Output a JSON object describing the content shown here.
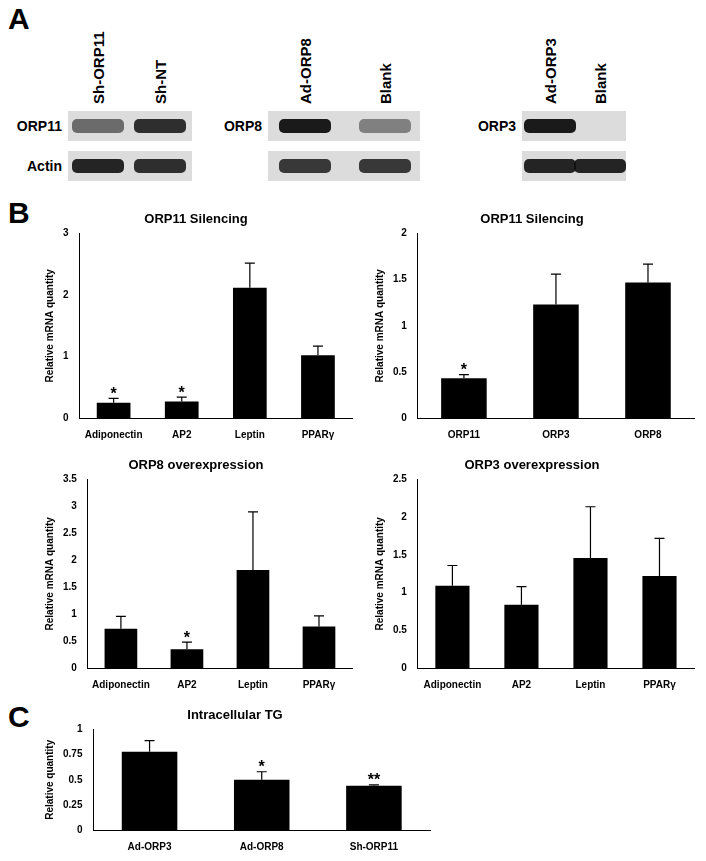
{
  "panel_labels": [
    "A",
    "B",
    "C"
  ],
  "blots": [
    {
      "lanes": [
        "Sh-ORP11",
        "Sh-NT"
      ],
      "rows": [
        {
          "label": "ORP11",
          "bands": [
            0.55,
            0.85
          ]
        },
        {
          "label": "Actin",
          "bands": [
            0.9,
            0.85
          ]
        }
      ]
    },
    {
      "lanes": [
        "Ad-ORP8",
        "Blank"
      ],
      "rows": [
        {
          "label": "ORP8",
          "bands": [
            0.95,
            0.45
          ]
        },
        {
          "label": null,
          "bands": [
            0.8,
            0.8
          ]
        }
      ]
    },
    {
      "lanes": [
        "Ad-ORP3",
        "Blank"
      ],
      "rows": [
        {
          "label": "ORP3",
          "bands": [
            0.95,
            0.0
          ]
        },
        {
          "label": null,
          "bands": [
            0.9,
            0.9
          ]
        }
      ]
    }
  ],
  "chart_data": [
    {
      "type": "bar",
      "title": "ORP11 Silencing",
      "y_label": "Relative mRNA quantity",
      "categories": [
        "Adiponectin",
        "AP2",
        "Leptin",
        "PPARγ"
      ],
      "values": [
        0.25,
        0.27,
        2.12,
        1.02
      ],
      "errors": [
        0.07,
        0.07,
        0.4,
        0.15
      ],
      "annotations": [
        "*",
        "*",
        null,
        null
      ],
      "color": "#000000",
      "ylim": [
        0,
        3
      ],
      "yticks": [
        0,
        1,
        2,
        3
      ],
      "grid": false
    },
    {
      "type": "bar",
      "title": "ORP11 Silencing",
      "y_label": "Relative mRNA quantity",
      "categories": [
        "ORP11",
        "ORP3",
        "ORP8"
      ],
      "values": [
        0.43,
        1.23,
        1.47
      ],
      "errors": [
        0.04,
        0.33,
        0.2
      ],
      "annotations": [
        "*",
        null,
        null
      ],
      "color": "#000000",
      "ylim": [
        0,
        2
      ],
      "yticks": [
        0,
        0.5,
        1,
        1.5,
        2
      ],
      "grid": false
    },
    {
      "type": "bar",
      "title": "ORP8 overexpression",
      "y_label": "Relative mRNA quantity",
      "categories": [
        "Adiponectin",
        "AP2",
        "Leptin",
        "PPARγ"
      ],
      "values": [
        0.73,
        0.35,
        1.82,
        0.77
      ],
      "errors": [
        0.23,
        0.13,
        1.08,
        0.2
      ],
      "annotations": [
        null,
        "*",
        null,
        null
      ],
      "color": "#000000",
      "ylim": [
        0,
        3.5
      ],
      "yticks": [
        0,
        0.5,
        1,
        1.5,
        2,
        2.5,
        3,
        3.5
      ],
      "grid": false
    },
    {
      "type": "bar",
      "title": "ORP3 overexpression",
      "y_label": "Relative mRNA quantity",
      "categories": [
        "Adiponectin",
        "AP2",
        "Leptin",
        "PPARγ"
      ],
      "values": [
        1.09,
        0.84,
        1.46,
        1.22
      ],
      "errors": [
        0.27,
        0.24,
        0.68,
        0.5
      ],
      "color": "#000000",
      "ylim": [
        0,
        2.5
      ],
      "yticks": [
        0,
        0.5,
        1,
        1.5,
        2,
        2.5
      ],
      "grid": false
    },
    {
      "type": "bar",
      "title": "Intracellular TG",
      "y_label": "Relative quantity",
      "categories": [
        "Ad-ORP3",
        "Ad-ORP8",
        "Sh-ORP11"
      ],
      "values": [
        0.78,
        0.5,
        0.44
      ],
      "errors": [
        0.11,
        0.08,
        0.01
      ],
      "annotations": [
        null,
        "*",
        "**"
      ],
      "color": "#000000",
      "ylim": [
        0,
        1
      ],
      "yticks": [
        0,
        0.25,
        0.5,
        0.75,
        1
      ],
      "grid": false
    }
  ]
}
